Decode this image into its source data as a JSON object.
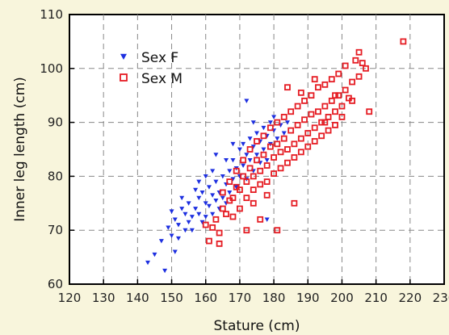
{
  "chart_data": {
    "type": "scatter",
    "title": "",
    "xlabel": "Stature (cm)",
    "ylabel": "Inner leg length (cm)",
    "xlim": [
      120,
      230
    ],
    "ylim": [
      60,
      110
    ],
    "x_ticks": [
      "120",
      "130",
      "140",
      "150",
      "160",
      "170",
      "180",
      "190",
      "200",
      "210",
      "220",
      "230"
    ],
    "y_ticks": [
      "60",
      "70",
      "80",
      "90",
      "100",
      "110"
    ],
    "grid": true,
    "legend_position": "top-left",
    "series": [
      {
        "name": "Sex F",
        "color": "#1d2fe0",
        "marker": "triangle",
        "points": [
          [
            143,
            64
          ],
          [
            145,
            65.5
          ],
          [
            148,
            62.5
          ],
          [
            147,
            68
          ],
          [
            149,
            70.5
          ],
          [
            150,
            69
          ],
          [
            151,
            72
          ],
          [
            150,
            73.5
          ],
          [
            152,
            71
          ],
          [
            153,
            74
          ],
          [
            152,
            68.5
          ],
          [
            154,
            73
          ],
          [
            155,
            71.5
          ],
          [
            155,
            75
          ],
          [
            156,
            72.5
          ],
          [
            157,
            74
          ],
          [
            156,
            70
          ],
          [
            158,
            76
          ],
          [
            158,
            73
          ],
          [
            159,
            71.5
          ],
          [
            159,
            77
          ],
          [
            160,
            75
          ],
          [
            160,
            72.5
          ],
          [
            161,
            78
          ],
          [
            161,
            74.5
          ],
          [
            162,
            76.5
          ],
          [
            162,
            73
          ],
          [
            163,
            79
          ],
          [
            163,
            75.5
          ],
          [
            164,
            77
          ],
          [
            164,
            74
          ],
          [
            165,
            80
          ],
          [
            165,
            76
          ],
          [
            166,
            78.5
          ],
          [
            166,
            75
          ],
          [
            167,
            81
          ],
          [
            167,
            77
          ],
          [
            168,
            79.5
          ],
          [
            168,
            83
          ],
          [
            169,
            78
          ],
          [
            169,
            81.5
          ],
          [
            170,
            85
          ],
          [
            170,
            80
          ],
          [
            171,
            82
          ],
          [
            171,
            86
          ],
          [
            172,
            84
          ],
          [
            172,
            79.5
          ],
          [
            173,
            87
          ],
          [
            173,
            83
          ],
          [
            174,
            85.5
          ],
          [
            174,
            81
          ],
          [
            175,
            88
          ],
          [
            175,
            84
          ],
          [
            176,
            86.5
          ],
          [
            176,
            82.5
          ],
          [
            177,
            89
          ],
          [
            177,
            85
          ],
          [
            178,
            87.5
          ],
          [
            178,
            83
          ],
          [
            179,
            90
          ],
          [
            179,
            86
          ],
          [
            180,
            88.5
          ],
          [
            180,
            91
          ],
          [
            181,
            87
          ],
          [
            182,
            89.5
          ],
          [
            183,
            88
          ],
          [
            184,
            90
          ],
          [
            172,
            94
          ],
          [
            163,
            84
          ],
          [
            160,
            80
          ],
          [
            157,
            77.5
          ],
          [
            154,
            70
          ],
          [
            151,
            66
          ],
          [
            166,
            83
          ],
          [
            178,
            72
          ],
          [
            158,
            79
          ],
          [
            153,
            76
          ],
          [
            162,
            81
          ],
          [
            168,
            86
          ],
          [
            174,
            90
          ]
        ]
      },
      {
        "name": "Sex M",
        "color": "#e51c23",
        "marker": "square",
        "points": [
          [
            160,
            71
          ],
          [
            161,
            68
          ],
          [
            162,
            70.5
          ],
          [
            163,
            72
          ],
          [
            164,
            69.5
          ],
          [
            165,
            74
          ],
          [
            165,
            77
          ],
          [
            166,
            73
          ],
          [
            167,
            75.5
          ],
          [
            167,
            79
          ],
          [
            168,
            76
          ],
          [
            168,
            72.5
          ],
          [
            169,
            78
          ],
          [
            169,
            81
          ],
          [
            170,
            77.5
          ],
          [
            170,
            74
          ],
          [
            171,
            80
          ],
          [
            171,
            83
          ],
          [
            172,
            79
          ],
          [
            172,
            76
          ],
          [
            173,
            81.5
          ],
          [
            173,
            85
          ],
          [
            174,
            80
          ],
          [
            174,
            77.5
          ],
          [
            175,
            83
          ],
          [
            175,
            86.5
          ],
          [
            176,
            81
          ],
          [
            176,
            78.5
          ],
          [
            177,
            84
          ],
          [
            177,
            87.5
          ],
          [
            178,
            82
          ],
          [
            178,
            79
          ],
          [
            179,
            85.5
          ],
          [
            179,
            89
          ],
          [
            180,
            83.5
          ],
          [
            180,
            80.5
          ],
          [
            181,
            86
          ],
          [
            181,
            90
          ],
          [
            182,
            84.5
          ],
          [
            182,
            81.5
          ],
          [
            183,
            87
          ],
          [
            183,
            91
          ],
          [
            184,
            85
          ],
          [
            184,
            82.5
          ],
          [
            185,
            88.5
          ],
          [
            185,
            92
          ],
          [
            186,
            86
          ],
          [
            186,
            83.5
          ],
          [
            187,
            89.5
          ],
          [
            187,
            93
          ],
          [
            188,
            87
          ],
          [
            188,
            84.5
          ],
          [
            189,
            90.5
          ],
          [
            189,
            94
          ],
          [
            190,
            88
          ],
          [
            190,
            85.5
          ],
          [
            191,
            91.5
          ],
          [
            191,
            95
          ],
          [
            192,
            89
          ],
          [
            192,
            86.5
          ],
          [
            193,
            92
          ],
          [
            193,
            96.5
          ],
          [
            194,
            90
          ],
          [
            194,
            87.5
          ],
          [
            195,
            93
          ],
          [
            195,
            97
          ],
          [
            196,
            91
          ],
          [
            196,
            88.5
          ],
          [
            197,
            94
          ],
          [
            197,
            98
          ],
          [
            198,
            92
          ],
          [
            198,
            89.5
          ],
          [
            199,
            95
          ],
          [
            199,
            99
          ],
          [
            200,
            93
          ],
          [
            200,
            91
          ],
          [
            201,
            96
          ],
          [
            201,
            100.5
          ],
          [
            202,
            94.5
          ],
          [
            203,
            97.5
          ],
          [
            204,
            101.5
          ],
          [
            205,
            103
          ],
          [
            205,
            98.5
          ],
          [
            206,
            101
          ],
          [
            207,
            100
          ],
          [
            218,
            105
          ],
          [
            186,
            75
          ],
          [
            181,
            70
          ],
          [
            176,
            72
          ],
          [
            172,
            70
          ],
          [
            164,
            67.5
          ],
          [
            184,
            96.5
          ],
          [
            192,
            98
          ],
          [
            198,
            95
          ],
          [
            203,
            94
          ],
          [
            208,
            92
          ],
          [
            174,
            75
          ],
          [
            178,
            76.5
          ],
          [
            188,
            95.5
          ],
          [
            195,
            90
          ]
        ]
      }
    ]
  }
}
